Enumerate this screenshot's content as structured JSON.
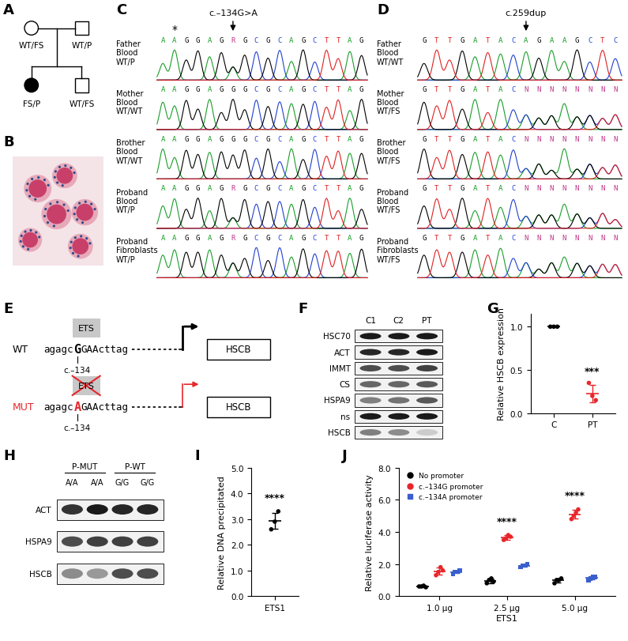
{
  "panels": {
    "A": {
      "letter": "A",
      "mother": "WT/FS",
      "father": "WT/P",
      "daughter": "FS/P",
      "son": "WT/FS"
    },
    "B": {
      "letter": "B"
    },
    "C": {
      "letter": "C",
      "title": "c.–134G>A",
      "mark": "*",
      "rows": [
        {
          "person": "Father",
          "tissue": "Blood",
          "genotype": "WT/P",
          "sequence": "AAGGAGRGCGCAGCTTAG"
        },
        {
          "person": "Mother",
          "tissue": "Blood",
          "genotype": "WT/WT",
          "sequence": "AAGGAGGGCGCAGCTTAG"
        },
        {
          "person": "Brother",
          "tissue": "Blood",
          "genotype": "WT/WT",
          "sequence": "AAGGAGGGCGCAGCTTAG"
        },
        {
          "person": "Proband",
          "tissue": "Blood",
          "genotype": "WT/P",
          "sequence": "AAGGAGRGCGCAGCTTAG"
        },
        {
          "person": "Proband",
          "tissue": "Fibroblasts",
          "genotype": "WT/P",
          "sequence": "AAGGAGRGCGCAGCTTAG"
        }
      ]
    },
    "D": {
      "letter": "D",
      "title": "c.259dup",
      "rows": [
        {
          "person": "Father",
          "tissue": "Blood",
          "genotype": "WT/WT",
          "sequence": "GTTGATACAGAAGCTC"
        },
        {
          "person": "Mother",
          "tissue": "Blood",
          "genotype": "WT/FS",
          "sequence": "GTTGATACNNNNNNNN"
        },
        {
          "person": "Brother",
          "tissue": "Blood",
          "genotype": "WT/FS",
          "sequence": "GTTGATACNNNNNNNN"
        },
        {
          "person": "Proband",
          "tissue": "Blood",
          "genotype": "WT/FS",
          "sequence": "GTTGATACNNNNNNNN"
        },
        {
          "person": "Proband",
          "tissue": "Fibroblasts",
          "genotype": "WT/FS",
          "sequence": "GTTGATACNNNNNNNN"
        }
      ]
    },
    "E": {
      "letter": "E",
      "box": "ETS",
      "gene": "HSCB",
      "position": "c.–134",
      "rows": [
        {
          "label": "WT",
          "pre": "agagc",
          "base": "G",
          "post": "GAActtag",
          "color": "#000000"
        },
        {
          "label": "MUT",
          "pre": "agagc",
          "base": "A",
          "post": "GAActtag",
          "color": "#e8262a"
        }
      ]
    },
    "F": {
      "letter": "F",
      "columns": [
        "C1",
        "C2",
        "PT"
      ],
      "rows": [
        {
          "label": "HSC70",
          "intensity": [
            0.9,
            0.9,
            0.9
          ]
        },
        {
          "label": "ACT",
          "intensity": [
            0.85,
            0.85,
            0.9
          ]
        },
        {
          "label": "IMMT",
          "intensity": [
            0.7,
            0.7,
            0.75
          ]
        },
        {
          "label": "CS",
          "intensity": [
            0.6,
            0.6,
            0.65
          ]
        },
        {
          "label": "HSPA9",
          "intensity": [
            0.5,
            0.55,
            0.65
          ]
        },
        {
          "label": "ns",
          "intensity": [
            0.9,
            0.9,
            0.9
          ]
        },
        {
          "label": "HSCB",
          "intensity": [
            0.5,
            0.45,
            0.2
          ]
        }
      ]
    },
    "H": {
      "letter": "H",
      "groups": [
        {
          "label": "P-MUT",
          "genotypes": [
            "A/A",
            "A/A"
          ]
        },
        {
          "label": "P-WT",
          "genotypes": [
            "G/G",
            "G/G"
          ]
        }
      ],
      "rows": [
        {
          "label": "ACT",
          "intensity": [
            0.8,
            0.9,
            0.85,
            0.85
          ]
        },
        {
          "label": "HSPA9",
          "intensity": [
            0.7,
            0.75,
            0.75,
            0.75
          ]
        },
        {
          "label": "HSCB",
          "intensity": [
            0.45,
            0.4,
            0.7,
            0.7
          ]
        }
      ]
    }
  },
  "chart_data": [
    {
      "panel": "G",
      "type": "scatter",
      "y_label": "Relative HSCB expression",
      "categories": [
        "C",
        "PT"
      ],
      "values": [
        [
          1.0,
          1.0,
          1.0
        ],
        [
          0.35,
          0.2,
          0.15
        ]
      ],
      "mean": [
        1.0,
        0.23
      ],
      "sd": [
        0.0,
        0.1
      ],
      "colors": [
        "#000000",
        "#e8262a"
      ],
      "marker": "circle",
      "ylim": [
        0,
        1.15
      ],
      "yticks": [
        {
          "value": 0,
          "label": "0.0"
        },
        {
          "value": 0.5,
          "label": "0.5"
        },
        {
          "value": 1,
          "label": "1.0"
        }
      ],
      "annotations": [
        {
          "category": "PT",
          "text": "***"
        }
      ]
    },
    {
      "panel": "I",
      "type": "scatter",
      "y_label": "Relative DNA precipitated",
      "categories": [
        "ETS1"
      ],
      "values": [
        [
          2.6,
          2.9,
          3.3
        ]
      ],
      "mean": [
        2.93
      ],
      "sd": [
        0.3
      ],
      "colors": [
        "#000000"
      ],
      "marker": "circle",
      "ylim": [
        0,
        5
      ],
      "yticks": [
        {
          "value": 0,
          "label": "0.0"
        },
        {
          "value": 1,
          "label": "1.0"
        },
        {
          "value": 2,
          "label": "2.0"
        },
        {
          "value": 3,
          "label": "3.0"
        },
        {
          "value": 4,
          "label": "4.0"
        },
        {
          "value": 5,
          "label": "5.0"
        }
      ],
      "annotations": [
        {
          "category": "ETS1",
          "text": "****"
        }
      ]
    },
    {
      "panel": "J",
      "type": "scatter",
      "x_label": "ETS1",
      "y_label": "Relative luciferase activity",
      "categories": [
        "1.0 µg",
        "2.5 µg",
        "5.0 µg"
      ],
      "series": [
        {
          "name": "No promoter",
          "color": "#000000",
          "marker": "circle",
          "values": [
            [
              0.6,
              0.6,
              0.65,
              0.55
            ],
            [
              0.8,
              1.0,
              1.1,
              0.9
            ],
            [
              0.8,
              1.0,
              1.0,
              1.1
            ]
          ],
          "mean": [
            0.6,
            0.95,
            0.98
          ],
          "sd": [
            0.04,
            0.13,
            0.13
          ]
        },
        {
          "name": "c.–134G promoter",
          "color": "#e8262a",
          "marker": "circle",
          "values": [
            [
              1.3,
              1.5,
              1.8,
              1.6
            ],
            [
              3.5,
              3.6,
              3.8,
              3.7
            ],
            [
              4.8,
              5.0,
              5.2,
              5.4
            ]
          ],
          "mean": [
            1.55,
            3.65,
            5.1
          ],
          "sd": [
            0.21,
            0.13,
            0.26
          ]
        },
        {
          "name": "c.–134A promoter",
          "color": "#3a5fcd",
          "marker": "square",
          "values": [
            [
              1.4,
              1.5,
              1.5,
              1.6
            ],
            [
              1.8,
              1.9,
              1.9,
              2.0
            ],
            [
              1.0,
              1.1,
              1.2,
              1.2
            ]
          ],
          "mean": [
            1.5,
            1.9,
            1.13
          ],
          "sd": [
            0.08,
            0.08,
            0.1
          ]
        }
      ],
      "ylim": [
        0,
        8
      ],
      "yticks": [
        {
          "value": 0,
          "label": "0.0"
        },
        {
          "value": 2,
          "label": "2.0"
        },
        {
          "value": 4,
          "label": "4.0"
        },
        {
          "value": 6,
          "label": "6.0"
        },
        {
          "value": 8,
          "label": "8.0"
        }
      ],
      "legend": "upper left",
      "annotations": [
        {
          "category": "2.5 µg",
          "series": "c.–134G promoter",
          "text": "****"
        },
        {
          "category": "5.0 µg",
          "series": "c.–134G promoter",
          "text": "****"
        }
      ]
    }
  ]
}
